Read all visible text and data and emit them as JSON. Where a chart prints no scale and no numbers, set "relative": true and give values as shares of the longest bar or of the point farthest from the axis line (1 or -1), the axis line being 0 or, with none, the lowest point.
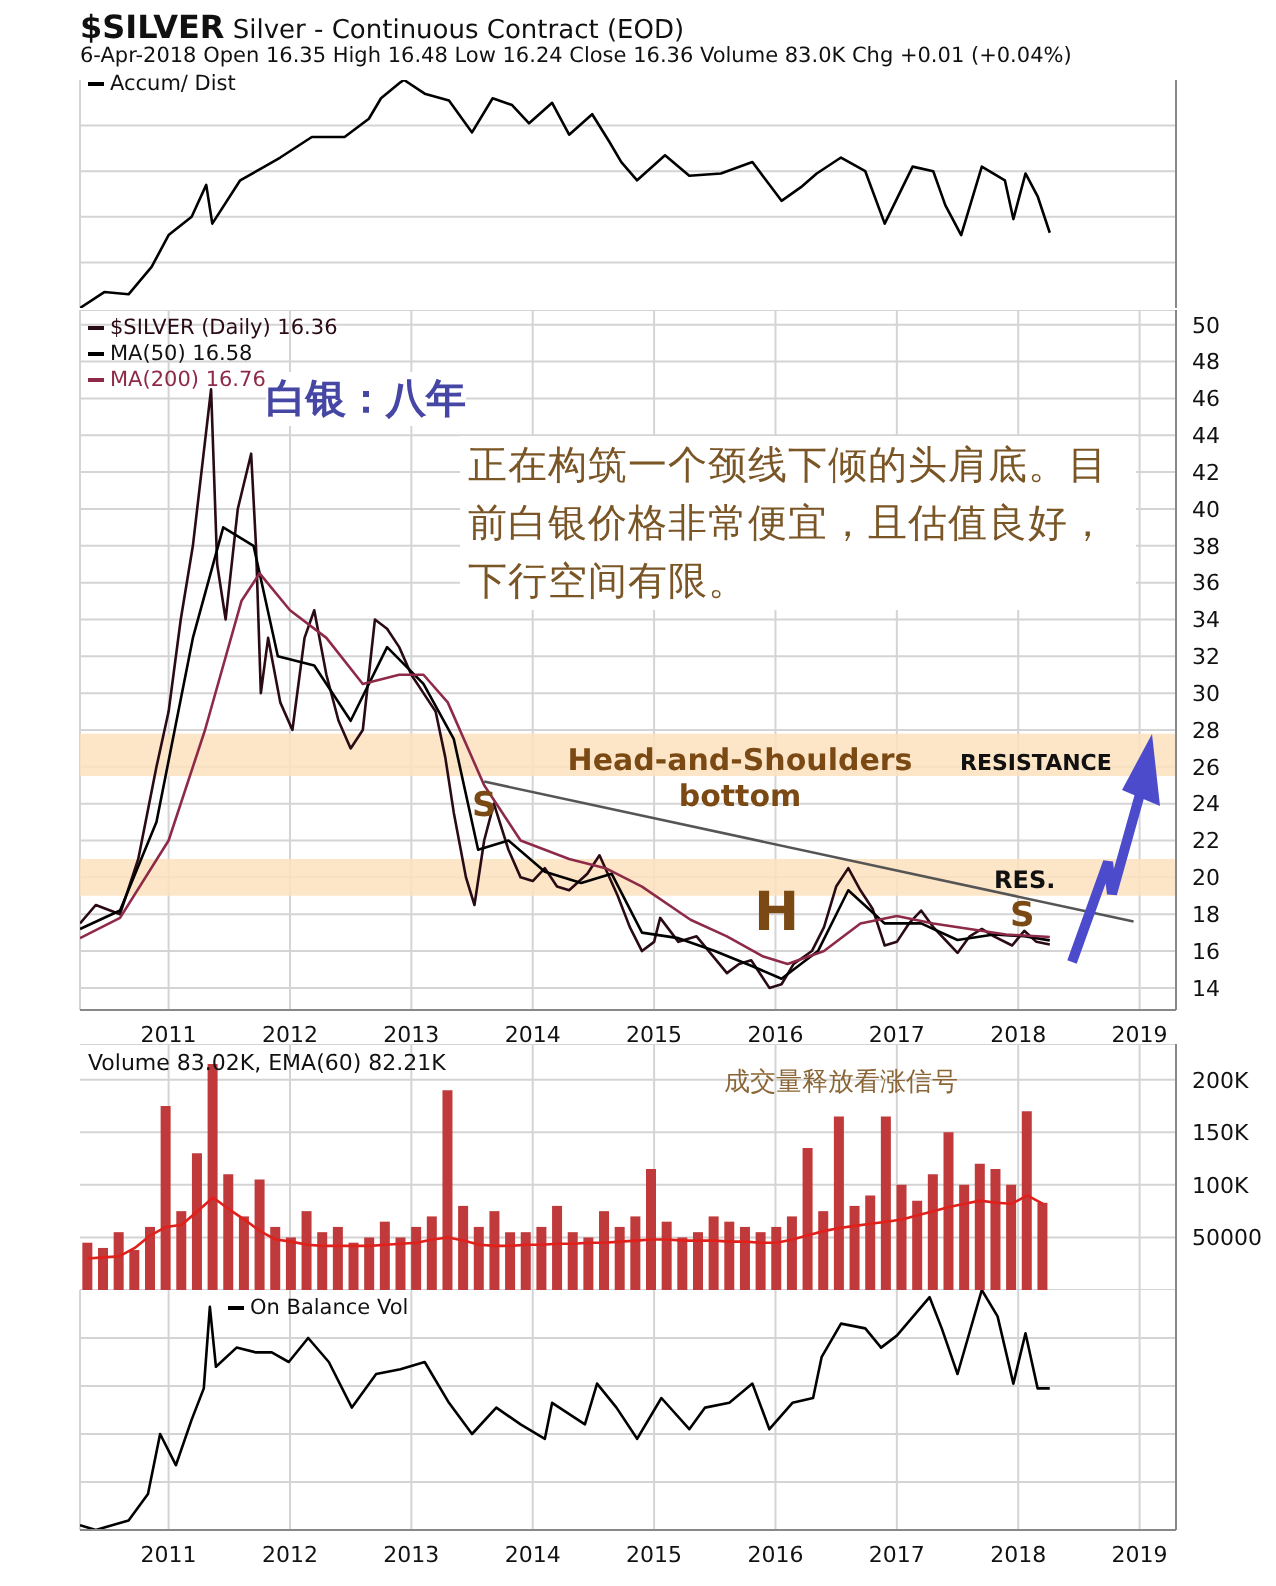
{
  "chart_data": [
    {
      "type": "line",
      "title": "$SILVER Silver - Continuous Contract (EOD)",
      "subtitle": "6-Apr-2018 Open 16.35 High 16.48 Low 16.24 Close 16.36 Volume 83.0K Chg +0.01 (+0.04%)",
      "relative": true,
      "xlim": [
        2010.27,
        2019.3
      ],
      "xticks": [
        2011,
        2012,
        2013,
        2014,
        2015,
        2016,
        2017,
        2018,
        2019
      ],
      "tick_labels": false,
      "grid": true,
      "legend": "top left",
      "series": [
        {
          "name": "Accum/ Dist",
          "color": "#000000",
          "x": [
            2010.27,
            2010.47,
            2010.67,
            2010.86,
            2011.0,
            2011.19,
            2011.31,
            2011.36,
            2011.59,
            2011.79,
            2011.92,
            2012.18,
            2012.45,
            2012.65,
            2012.75,
            2012.91,
            2012.94,
            2013.11,
            2013.31,
            2013.5,
            2013.67,
            2013.83,
            2013.97,
            2014.16,
            2014.3,
            2014.49,
            2014.63,
            2014.73,
            2014.86,
            2015.09,
            2015.29,
            2015.55,
            2015.81,
            2016.05,
            2016.21,
            2016.34,
            2016.54,
            2016.74,
            2016.9,
            2017.13,
            2017.3,
            2017.4,
            2017.53,
            2017.7,
            2017.89,
            2017.96,
            2018.06,
            2018.16,
            2018.26
          ],
          "values": [
            0,
            0.07,
            0.06,
            0.18,
            0.32,
            0.4,
            0.54,
            0.37,
            0.56,
            0.62,
            0.66,
            0.75,
            0.75,
            0.83,
            0.92,
            0.99,
            1,
            0.94,
            0.91,
            0.77,
            0.92,
            0.89,
            0.81,
            0.9,
            0.76,
            0.85,
            0.73,
            0.64,
            0.56,
            0.67,
            0.58,
            0.59,
            0.64,
            0.47,
            0.53,
            0.59,
            0.66,
            0.6,
            0.37,
            0.62,
            0.6,
            0.45,
            0.32,
            0.62,
            0.56,
            0.39,
            0.59,
            0.49,
            0.33
          ]
        }
      ]
    },
    {
      "type": "line",
      "xlim": [
        2010.27,
        2019.3
      ],
      "xticks": [
        2011,
        2012,
        2013,
        2014,
        2015,
        2016,
        2017,
        2018,
        2019
      ],
      "ylim": [
        12.8,
        50.8
      ],
      "yticks": [
        14,
        16,
        18,
        20,
        22,
        24,
        26,
        28,
        30,
        32,
        34,
        36,
        38,
        40,
        42,
        44,
        46,
        48,
        50
      ],
      "grid": true,
      "legend": "top left",
      "bands": [
        {
          "axis": "y",
          "from": 25.5,
          "to": 27.8,
          "color": "#fbe2bd"
        },
        {
          "axis": "y",
          "from": 19,
          "to": 21,
          "color": "#fbe2bd"
        }
      ],
      "annotations": [
        "白银：八年",
        "正在构筑一个颈线下倾的头肩底。目前白银价格非常便宜，且估值良好，下行空间有限。",
        "Head-and-Shoulders bottom",
        "RESISTANCE",
        "RES.",
        "S",
        "H",
        "S"
      ],
      "series": [
        {
          "name": "$SILVER (Daily) 16.36",
          "color": "#2a0a14",
          "x": [
            2010.27,
            2010.4,
            2010.6,
            2010.75,
            2010.9,
            2011.0,
            2011.1,
            2011.2,
            2011.35,
            2011.4,
            2011.47,
            2011.57,
            2011.68,
            2011.72,
            2011.76,
            2011.82,
            2011.92,
            2012.02,
            2012.12,
            2012.2,
            2012.3,
            2012.4,
            2012.5,
            2012.6,
            2012.7,
            2012.8,
            2012.9,
            2013.0,
            2013.1,
            2013.2,
            2013.28,
            2013.35,
            2013.45,
            2013.52,
            2013.6,
            2013.68,
            2013.8,
            2013.9,
            2014.0,
            2014.1,
            2014.2,
            2014.3,
            2014.45,
            2014.55,
            2014.7,
            2014.8,
            2014.9,
            2015.0,
            2015.05,
            2015.2,
            2015.35,
            2015.5,
            2015.6,
            2015.7,
            2015.8,
            2015.95,
            2016.05,
            2016.15,
            2016.3,
            2016.4,
            2016.5,
            2016.6,
            2016.7,
            2016.8,
            2016.9,
            2017.0,
            2017.1,
            2017.2,
            2017.3,
            2017.4,
            2017.5,
            2017.6,
            2017.7,
            2017.8,
            2017.95,
            2018.05,
            2018.15,
            2018.26
          ],
          "values": [
            17.5,
            18.5,
            18,
            21,
            26,
            29,
            34,
            38,
            46.5,
            37,
            34,
            40,
            43,
            38,
            30,
            33,
            29.5,
            28,
            33,
            34.5,
            31,
            28.5,
            27,
            28,
            34,
            33.5,
            32.5,
            31,
            30,
            29,
            26.5,
            23.5,
            20,
            18.5,
            22,
            24,
            21.5,
            20,
            19.8,
            20.5,
            19.5,
            19.3,
            20.2,
            21.2,
            19,
            17.3,
            16,
            16.5,
            17.8,
            16.5,
            16.8,
            15.6,
            14.8,
            15.3,
            15.5,
            14,
            14.2,
            15.3,
            16,
            17.3,
            19.5,
            20.5,
            19.3,
            18.3,
            16.3,
            16.5,
            17.5,
            18.2,
            17.3,
            16.6,
            15.9,
            16.8,
            17.2,
            16.8,
            16.3,
            17.1,
            16.5,
            16.36
          ]
        },
        {
          "name": "MA(50) 16.58",
          "color": "#000000",
          "x": [
            2010.27,
            2010.6,
            2010.9,
            2011.2,
            2011.45,
            2011.7,
            2011.9,
            2012.2,
            2012.5,
            2012.8,
            2013.1,
            2013.35,
            2013.55,
            2013.8,
            2014.1,
            2014.4,
            2014.65,
            2014.9,
            2015.2,
            2015.5,
            2015.8,
            2016.05,
            2016.35,
            2016.6,
            2016.9,
            2017.2,
            2017.5,
            2017.8,
            2018.05,
            2018.26
          ],
          "values": [
            17.2,
            18.2,
            23,
            33,
            39,
            38,
            32,
            31.5,
            28.5,
            32.5,
            30.5,
            27.5,
            21.5,
            22,
            20.3,
            19.7,
            20.2,
            17,
            16.7,
            16,
            15.2,
            14.5,
            16,
            19.3,
            17.5,
            17.5,
            16.6,
            16.9,
            16.8,
            16.58
          ]
        },
        {
          "name": "MA(200) 16.76",
          "color": "#8e2a48",
          "x": [
            2010.27,
            2010.6,
            2011.0,
            2011.3,
            2011.6,
            2011.75,
            2012.0,
            2012.3,
            2012.6,
            2012.9,
            2013.1,
            2013.3,
            2013.6,
            2013.9,
            2014.3,
            2014.6,
            2014.9,
            2015.3,
            2015.6,
            2015.9,
            2016.1,
            2016.4,
            2016.7,
            2017.0,
            2017.3,
            2017.6,
            2017.9,
            2018.26
          ],
          "values": [
            16.7,
            17.8,
            22,
            28,
            35,
            36.5,
            34.5,
            33,
            30.5,
            31,
            31,
            29.5,
            25,
            22,
            21,
            20.5,
            19.5,
            17.7,
            16.8,
            15.7,
            15.3,
            16,
            17.5,
            17.9,
            17.5,
            17.2,
            16.9,
            16.76
          ]
        },
        {
          "color": "#555555",
          "x": [
            2013.6,
            2018.95
          ],
          "values": [
            25.2,
            17.6
          ]
        }
      ]
    },
    {
      "type": "bar",
      "title": "Volume 83.02K, EMA(60) 82.21K",
      "categories": [
        null,
        null,
        null,
        null,
        null,
        null,
        null,
        null,
        null,
        null,
        null,
        null,
        null,
        null,
        null,
        null,
        null,
        null,
        null,
        null,
        null,
        null,
        null,
        null,
        null,
        null,
        null,
        null,
        null,
        null,
        null,
        null,
        null,
        null,
        null,
        null,
        null,
        null,
        null,
        null,
        null,
        null,
        null,
        null,
        null,
        null,
        null,
        null,
        null,
        null,
        null,
        null,
        null,
        null,
        null,
        null,
        null,
        null,
        null,
        null,
        null,
        null,
        null,
        null,
        null,
        null,
        null,
        null,
        null,
        null
      ],
      "ylim": [
        0,
        234000
      ],
      "yticks": [
        50000,
        {
          "value": 100000,
          "label": "100K"
        },
        {
          "value": 150000,
          "label": "150K"
        },
        {
          "value": 200000,
          "label": "200K"
        }
      ],
      "tick_labels": "y",
      "grid": true,
      "annotations": [
        "成交量释放看涨信号"
      ],
      "series": [
        {
          "color": "#c0393b",
          "values": [
            45000,
            40000,
            55000,
            38000,
            60000,
            175000,
            75000,
            130000,
            215000,
            110000,
            70000,
            105000,
            60000,
            50000,
            75000,
            55000,
            60000,
            45000,
            50000,
            65000,
            50000,
            60000,
            70000,
            190000,
            80000,
            60000,
            75000,
            55000,
            55000,
            60000,
            80000,
            55000,
            50000,
            75000,
            60000,
            70000,
            115000,
            65000,
            50000,
            55000,
            70000,
            65000,
            60000,
            55000,
            60000,
            70000,
            135000,
            75000,
            165000,
            80000,
            90000,
            165000,
            100000,
            85000,
            110000,
            150000,
            100000,
            120000,
            115000,
            100000,
            170000,
            83000,
            null,
            null,
            null,
            null,
            null,
            null,
            null,
            null
          ]
        },
        {
          "type": "line",
          "color": "#e0201b",
          "values": [
            30000,
            31000,
            32000,
            40000,
            52000,
            60000,
            62000,
            75000,
            88000,
            77000,
            67000,
            56000,
            48000,
            46000,
            43000,
            42000,
            42000,
            42000,
            42000,
            43000,
            44000,
            45000,
            48000,
            50000,
            47000,
            43000,
            42000,
            42000,
            43000,
            43000,
            44000,
            44000,
            45000,
            45000,
            46000,
            47000,
            48000,
            48000,
            47000,
            47000,
            47000,
            46000,
            46000,
            45000,
            45000,
            48000,
            52000,
            56000,
            59000,
            61000,
            63000,
            65000,
            67000,
            71000,
            75000,
            79000,
            82000,
            85000,
            83000,
            82000,
            90000,
            82000,
            null,
            null,
            null,
            null,
            null,
            null,
            null,
            null
          ]
        }
      ]
    },
    {
      "type": "line",
      "relative": true,
      "xlim": [
        2010.27,
        2019.3
      ],
      "xticks": [
        2011,
        2012,
        2013,
        2014,
        2015,
        2016,
        2017,
        2018,
        2019
      ],
      "tick_labels": "x",
      "grid": true,
      "legend": "top left",
      "series": [
        {
          "name": "On Balance Vol",
          "color": "#000000",
          "x": [
            2010.27,
            2010.4,
            2010.67,
            2010.83,
            2010.93,
            2011.06,
            2011.19,
            2011.29,
            2011.34,
            2011.39,
            2011.56,
            2011.72,
            2011.85,
            2011.99,
            2012.15,
            2012.32,
            2012.51,
            2012.71,
            2012.91,
            2013.11,
            2013.31,
            2013.5,
            2013.7,
            2013.9,
            2014.1,
            2014.16,
            2014.43,
            2014.53,
            2014.69,
            2014.86,
            2015.06,
            2015.29,
            2015.42,
            2015.62,
            2015.81,
            2015.95,
            2016.14,
            2016.31,
            2016.38,
            2016.54,
            2016.74,
            2016.87,
            2017.0,
            2017.27,
            2017.37,
            2017.5,
            2017.7,
            2017.83,
            2017.96,
            2018.06,
            2018.16,
            2018.26
          ],
          "values": [
            0.02,
            0,
            0.04,
            0.15,
            0.4,
            0.27,
            0.46,
            0.59,
            0.93,
            0.68,
            0.76,
            0.74,
            0.74,
            0.7,
            0.8,
            0.7,
            0.51,
            0.65,
            0.67,
            0.7,
            0.53,
            0.4,
            0.51,
            0.44,
            0.38,
            0.53,
            0.44,
            0.61,
            0.51,
            0.38,
            0.55,
            0.42,
            0.51,
            0.53,
            0.61,
            0.42,
            0.53,
            0.55,
            0.72,
            0.86,
            0.84,
            0.76,
            0.81,
            0.97,
            0.84,
            0.65,
            1,
            0.89,
            0.61,
            0.82,
            0.59,
            0.59
          ]
        }
      ]
    }
  ]
}
